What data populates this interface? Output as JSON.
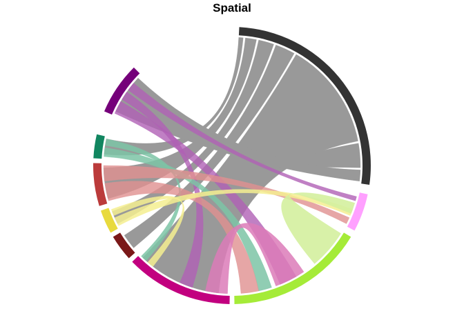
{
  "title": "Spatial",
  "groups": [
    {
      "color": "#333333",
      "start": 3,
      "end": 98
    },
    {
      "color": "#FFA0FF",
      "start": 102,
      "end": 118
    },
    {
      "color": "#A5EB38",
      "start": 121,
      "end": 179
    },
    {
      "color": "#C2007F",
      "start": 181,
      "end": 226
    },
    {
      "color": "#7A1818",
      "start": 228,
      "end": 239
    },
    {
      "color": "#E8DA3D",
      "start": 241,
      "end": 251
    },
    {
      "color": "#BB3B3B",
      "start": 253,
      "end": 271
    },
    {
      "color": "#118660",
      "start": 273,
      "end": 283
    },
    {
      "color": "#75007A",
      "start": 293,
      "end": 315
    }
  ],
  "chords": [
    {
      "source": 0,
      "s": [
        80,
        91
      ],
      "t": [
        92,
        97
      ],
      "color": "#999999",
      "opacity": 1
    },
    {
      "source": 0,
      "s": [
        30,
        79
      ],
      "t": [
        186,
        224
      ],
      "color": "#999999",
      "opacity": 1
    },
    {
      "source": 0,
      "s": [
        20,
        29
      ],
      "t": [
        230,
        237
      ],
      "color": "#999999",
      "opacity": 1
    },
    {
      "source": 0,
      "s": [
        12,
        19
      ],
      "t": [
        243,
        249
      ],
      "color": "#999999",
      "opacity": 1
    },
    {
      "source": 0,
      "s": [
        6,
        11
      ],
      "t": [
        255,
        269
      ],
      "color": "#999999",
      "opacity": 1
    },
    {
      "source": 0,
      "s": [
        3,
        5
      ],
      "t": [
        275,
        282
      ],
      "color": "#999999",
      "opacity": 1
    },
    {
      "source": 0,
      "s": [
        92,
        97
      ],
      "t": [
        295,
        313
      ],
      "color": "#999999",
      "opacity": 1
    },
    {
      "source": 8,
      "s": [
        294,
        300
      ],
      "t": [
        150,
        158
      ],
      "color": "#B060B5",
      "opacity": 0.8
    },
    {
      "source": 8,
      "s": [
        301,
        305
      ],
      "t": [
        198,
        204
      ],
      "color": "#B060B5",
      "opacity": 0.8
    },
    {
      "source": 8,
      "s": [
        306,
        310
      ],
      "t": [
        104,
        106
      ],
      "color": "#B060B5",
      "opacity": 0.8
    },
    {
      "source": 7,
      "s": [
        274,
        278
      ],
      "t": [
        162,
        168
      ],
      "color": "#7CC4A6",
      "opacity": 0.85
    },
    {
      "source": 7,
      "s": [
        279,
        282
      ],
      "t": [
        222,
        225
      ],
      "color": "#7CC4A6",
      "opacity": 0.85
    },
    {
      "source": 6,
      "s": [
        254,
        262
      ],
      "t": [
        168,
        176
      ],
      "color": "#E09090",
      "opacity": 0.8
    },
    {
      "source": 6,
      "s": [
        263,
        270
      ],
      "t": [
        114,
        117
      ],
      "color": "#E09090",
      "opacity": 0.8
    },
    {
      "source": 5,
      "s": [
        242,
        246
      ],
      "t": [
        110,
        113
      ],
      "color": "#F5EE90",
      "opacity": 0.85
    },
    {
      "source": 5,
      "s": [
        247,
        250
      ],
      "t": [
        218,
        221
      ],
      "color": "#F5EE90",
      "opacity": 0.85
    },
    {
      "source": 3,
      "s": [
        182,
        192
      ],
      "t": [
        146,
        160
      ],
      "color": "#DC7BB9",
      "opacity": 0.85
    },
    {
      "source": 2,
      "s": [
        122,
        140
      ],
      "t": [
        107,
        112
      ],
      "color": "#D4F09E",
      "opacity": 0.9
    }
  ]
}
